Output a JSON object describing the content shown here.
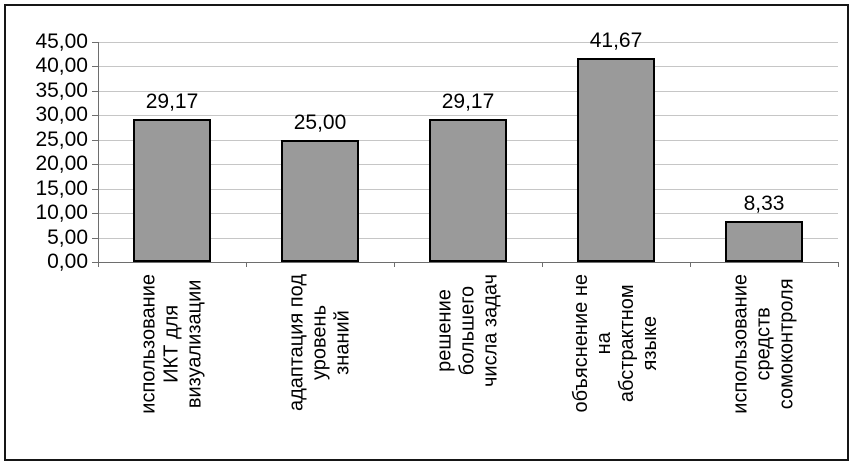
{
  "colors": {
    "bar_fill": "#9a9a9a",
    "bar_border": "#000000",
    "gridline": "#c6c6c6",
    "axis": "#6e6e6e",
    "frame_border": "#161616",
    "background": "#ffffff",
    "text": "#000000"
  },
  "chart_data": {
    "type": "bar",
    "title": "",
    "xlabel": "",
    "ylabel": "",
    "categories": [
      "использование\nИКТ для\nвизуализации",
      "адаптация под\nуровень\nзнаний",
      "решение\nбольшего\nчисла задач",
      "объяснение не\nна\nабстрактном\nязыке",
      "использование\nсредств\nсомоконтроля"
    ],
    "values": [
      29.17,
      25.0,
      29.17,
      41.67,
      8.33
    ],
    "value_labels": [
      "29,17",
      "25,00",
      "29,17",
      "41,67",
      "8,33"
    ],
    "ylim": [
      0,
      45
    ],
    "y_step": 5,
    "y_tick_labels": [
      "0,00",
      "5,00",
      "10,00",
      "15,00",
      "20,00",
      "25,00",
      "30,00",
      "35,00",
      "40,00",
      "45,00"
    ],
    "grid": true,
    "legend": "none",
    "decimal_separator": ","
  }
}
